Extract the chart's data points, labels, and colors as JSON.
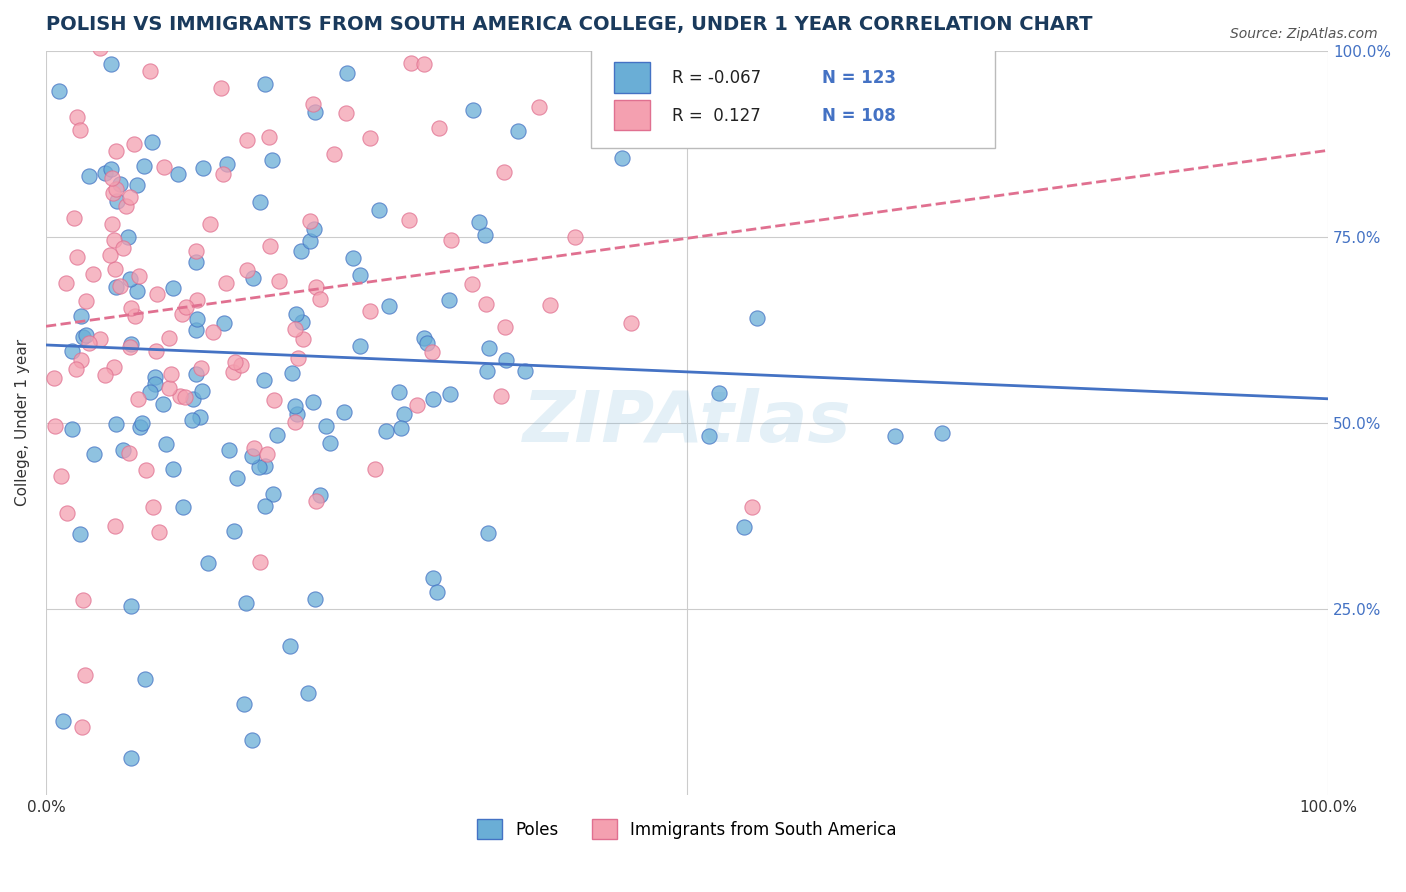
{
  "title": "POLISH VS IMMIGRANTS FROM SOUTH AMERICA COLLEGE, UNDER 1 YEAR CORRELATION CHART",
  "source_text": "Source: ZipAtlas.com",
  "xlabel": "",
  "ylabel": "College, Under 1 year",
  "xlim": [
    0.0,
    1.0
  ],
  "ylim": [
    0.0,
    1.0
  ],
  "xtick_labels": [
    "0.0%",
    "100.0%"
  ],
  "ytick_labels": [
    "25.0%",
    "50.0%",
    "75.0%",
    "100.0%"
  ],
  "legend_entries": [
    {
      "label": "Poles",
      "color": "#aec6e8",
      "R": "-0.067",
      "N": "123"
    },
    {
      "label": "Immigrants from South America",
      "color": "#f4b8c1",
      "R": "0.127",
      "N": "108"
    }
  ],
  "watermark": "ZIPAtlas",
  "blue_color": "#6aaed6",
  "pink_color": "#f4a0b0",
  "blue_line_color": "#4472c4",
  "pink_line_color": "#e07090",
  "title_color": "#1a3a5c",
  "source_color": "#555555",
  "grid_color": "#cccccc",
  "seed_blue": 42,
  "seed_pink": 99,
  "n_blue": 123,
  "n_pink": 108,
  "R_blue": -0.067,
  "R_pink": 0.127
}
